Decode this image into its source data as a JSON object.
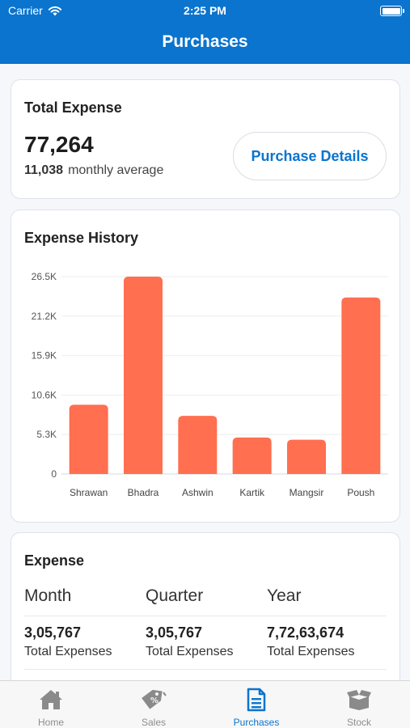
{
  "status_bar": {
    "carrier": "Carrier",
    "time": "2:25 PM"
  },
  "nav": {
    "title": "Purchases"
  },
  "total_expense": {
    "title": "Total Expense",
    "value": "77,264",
    "monthly_average_value": "11,038",
    "monthly_average_label": "monthly average",
    "details_button_label": "Purchase Details"
  },
  "expense_history": {
    "title": "Expense History"
  },
  "chart_data": {
    "type": "bar",
    "title": "Expense History",
    "categories": [
      "Shrawan",
      "Bhadra",
      "Ashwin",
      "Kartik",
      "Mangsir",
      "Poush"
    ],
    "values": [
      9300,
      26500,
      7800,
      4900,
      4600,
      23700
    ],
    "y_ticks": [
      "0",
      "5.3K",
      "10.6K",
      "15.9K",
      "21.2K",
      "26.5K"
    ],
    "y_tick_values": [
      0,
      5300,
      10600,
      15900,
      21200,
      26500
    ],
    "ylim": [
      0,
      26500
    ],
    "xlabel": "",
    "ylabel": "",
    "grid": true,
    "bar_color": "#ff6f50",
    "grid_color": "#eceef1"
  },
  "expense": {
    "title": "Expense",
    "columns": [
      {
        "header": "Month",
        "value": "3,05,767",
        "caption": "Total Expenses"
      },
      {
        "header": "Quarter",
        "value": "3,05,767",
        "caption": "Total Expenses"
      },
      {
        "header": "Year",
        "value": "7,72,63,674",
        "caption": "Total Expenses"
      }
    ]
  },
  "tabs": [
    {
      "label": "Home",
      "icon": "home-icon",
      "active": false
    },
    {
      "label": "Sales",
      "icon": "tags-icon",
      "active": false
    },
    {
      "label": "Purchases",
      "icon": "document-icon",
      "active": true
    },
    {
      "label": "Stock",
      "icon": "box-icon",
      "active": false
    }
  ],
  "colors": {
    "primary": "#0a74cf",
    "bar": "#ff6f50",
    "tab_inactive": "#8e8e8e"
  }
}
